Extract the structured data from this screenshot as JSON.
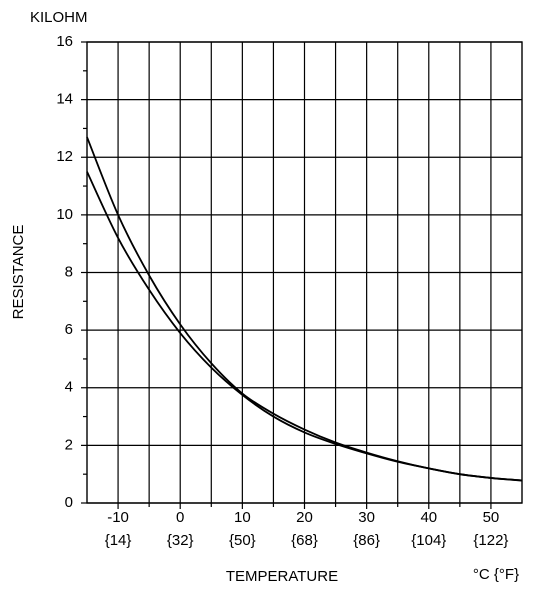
{
  "chart_data": {
    "type": "line",
    "y_unit_label": "KILOHM",
    "ylabel": "RESISTANCE",
    "xlabel": "TEMPERATURE",
    "x_unit_label": "°C {°F}",
    "x": [
      -15,
      -10,
      -5,
      0,
      5,
      10,
      15,
      20,
      25,
      30,
      35,
      40,
      45,
      50,
      55
    ],
    "series": [
      {
        "color": "#000000",
        "values": [
          12.7,
          10.0,
          7.9,
          6.2,
          4.85,
          3.8,
          3.1,
          2.55,
          2.1,
          1.75,
          1.45,
          1.2,
          1.0,
          0.87,
          0.78
        ]
      },
      {
        "color": "#000000",
        "values": [
          11.5,
          9.2,
          7.4,
          5.9,
          4.7,
          3.75,
          3.0,
          2.45,
          2.05,
          1.72,
          1.43,
          1.2,
          1.0,
          0.87,
          0.78
        ]
      }
    ],
    "xlim": [
      -15,
      55
    ],
    "xticks": [
      -10,
      0,
      10,
      20,
      30,
      40,
      50
    ],
    "xticks_secondary_labels": [
      "{14}",
      "{32}",
      "{50}",
      "{68}",
      "{86}",
      "{104}",
      "{122}"
    ],
    "xminor_grid": [
      -5,
      5,
      15,
      25,
      35,
      45
    ],
    "ylim": [
      0,
      16
    ],
    "yticks": [
      0,
      2,
      4,
      6,
      8,
      10,
      12,
      14,
      16
    ],
    "yminor_ticks": [
      1,
      3,
      5,
      7,
      9,
      11,
      13,
      15
    ],
    "grid": true
  }
}
